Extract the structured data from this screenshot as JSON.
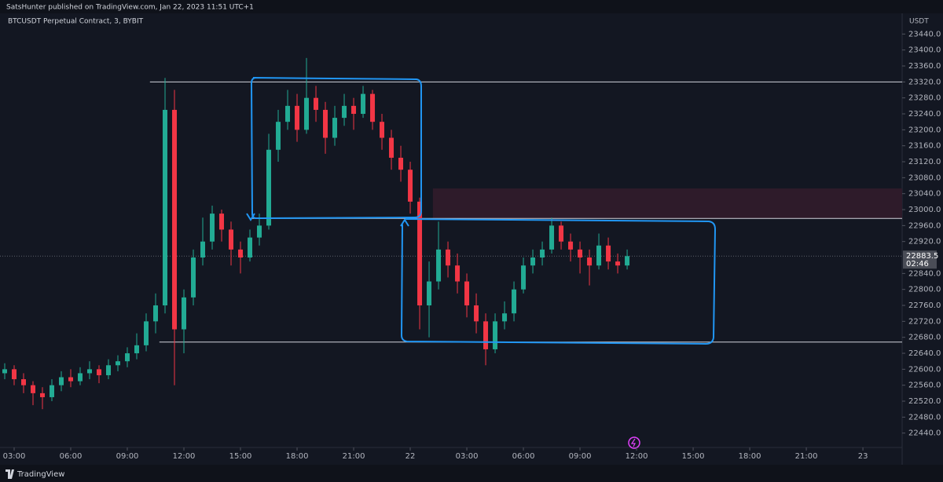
{
  "header": {
    "publisher": "SatsHunter published on TradingView.com, Jan 22, 2023 11:51 UTC+1",
    "brand": "TradingView"
  },
  "chart_data": {
    "type": "candlestick",
    "title": "BTCUSDT Perpetual Contract, 3, BYBIT",
    "y_unit": "USDT",
    "up_color": "#22ab94",
    "down_color": "#f23645",
    "x": [
      2.5,
      3,
      3.5,
      4,
      4.5,
      5,
      5.5,
      6,
      6.5,
      7,
      7.5,
      8,
      8.5,
      9,
      9.5,
      10,
      10.5,
      11,
      11.5,
      12,
      12.5,
      13,
      13.5,
      14,
      14.5,
      15,
      15.5,
      16,
      16.5,
      17,
      17.5,
      18,
      18.5,
      19,
      19.5,
      20,
      20.5,
      21,
      21.5,
      22,
      22.5,
      23,
      23.5,
      24,
      24.5,
      25,
      25.5,
      26,
      26.5,
      27,
      27.5,
      28,
      28.5,
      29,
      29.5,
      30,
      30.5,
      31,
      31.5,
      32,
      32.5,
      33,
      33.5,
      34,
      34.5,
      35,
      35.5
    ],
    "candles": [
      [
        22590,
        22615,
        22575,
        22600
      ],
      [
        22600,
        22610,
        22560,
        22575
      ],
      [
        22575,
        22590,
        22540,
        22560
      ],
      [
        22560,
        22570,
        22510,
        22540
      ],
      [
        22540,
        22555,
        22500,
        22530
      ],
      [
        22530,
        22575,
        22520,
        22560
      ],
      [
        22560,
        22595,
        22545,
        22580
      ],
      [
        22580,
        22600,
        22555,
        22570
      ],
      [
        22570,
        22605,
        22560,
        22590
      ],
      [
        22590,
        22620,
        22575,
        22600
      ],
      [
        22600,
        22610,
        22565,
        22585
      ],
      [
        22585,
        22625,
        22575,
        22610
      ],
      [
        22610,
        22635,
        22595,
        22620
      ],
      [
        22620,
        22655,
        22605,
        22640
      ],
      [
        22640,
        22690,
        22625,
        22660
      ],
      [
        22660,
        22740,
        22645,
        22720
      ],
      [
        22720,
        22790,
        22690,
        22760
      ],
      [
        22760,
        23330,
        22740,
        23250
      ],
      [
        23250,
        23300,
        22560,
        22700
      ],
      [
        22700,
        22800,
        22640,
        22780
      ],
      [
        22780,
        22900,
        22760,
        22880
      ],
      [
        22880,
        22980,
        22860,
        22920
      ],
      [
        22920,
        23010,
        22900,
        22990
      ],
      [
        22990,
        23000,
        22920,
        22950
      ],
      [
        22950,
        22970,
        22860,
        22900
      ],
      [
        22900,
        22920,
        22840,
        22880
      ],
      [
        22880,
        22950,
        22870,
        22930
      ],
      [
        22930,
        22990,
        22910,
        22960
      ],
      [
        22960,
        23190,
        22950,
        23150
      ],
      [
        23150,
        23250,
        23120,
        23220
      ],
      [
        23220,
        23300,
        23200,
        23260
      ],
      [
        23260,
        23290,
        23170,
        23200
      ],
      [
        23200,
        23380,
        23190,
        23280
      ],
      [
        23280,
        23310,
        23220,
        23250
      ],
      [
        23250,
        23270,
        23140,
        23180
      ],
      [
        23180,
        23260,
        23160,
        23230
      ],
      [
        23230,
        23290,
        23210,
        23260
      ],
      [
        23260,
        23280,
        23200,
        23240
      ],
      [
        23240,
        23310,
        23230,
        23290
      ],
      [
        23290,
        23300,
        23200,
        23220
      ],
      [
        23220,
        23240,
        23150,
        23180
      ],
      [
        23180,
        23200,
        23100,
        23130
      ],
      [
        23130,
        23160,
        23070,
        23100
      ],
      [
        23100,
        23120,
        22990,
        23020
      ],
      [
        23020,
        23030,
        22700,
        22760
      ],
      [
        22760,
        22870,
        22680,
        22820
      ],
      [
        22820,
        22970,
        22800,
        22900
      ],
      [
        22900,
        22920,
        22830,
        22860
      ],
      [
        22860,
        22890,
        22790,
        22820
      ],
      [
        22820,
        22840,
        22730,
        22760
      ],
      [
        22760,
        22790,
        22690,
        22720
      ],
      [
        22720,
        22740,
        22610,
        22650
      ],
      [
        22650,
        22740,
        22640,
        22720
      ],
      [
        22720,
        22770,
        22700,
        22740
      ],
      [
        22740,
        22820,
        22720,
        22800
      ],
      [
        22800,
        22880,
        22790,
        22860
      ],
      [
        22860,
        22900,
        22840,
        22880
      ],
      [
        22880,
        22920,
        22860,
        22900
      ],
      [
        22900,
        22980,
        22890,
        22960
      ],
      [
        22960,
        22970,
        22900,
        22920
      ],
      [
        22920,
        22940,
        22870,
        22900
      ],
      [
        22900,
        22920,
        22840,
        22880
      ],
      [
        22880,
        22900,
        22810,
        22860
      ],
      [
        22860,
        22940,
        22850,
        22910
      ],
      [
        22910,
        22930,
        22850,
        22870
      ],
      [
        22870,
        22890,
        22840,
        22860
      ],
      [
        22860,
        22900,
        22850,
        22883.5
      ]
    ],
    "xlim": [
      2.25,
      50.08
    ],
    "xticks": [
      {
        "value": 3,
        "label": "03:00"
      },
      {
        "value": 6,
        "label": "06:00"
      },
      {
        "value": 9,
        "label": "09:00"
      },
      {
        "value": 12,
        "label": "12:00"
      },
      {
        "value": 15,
        "label": "15:00"
      },
      {
        "value": 18,
        "label": "18:00"
      },
      {
        "value": 21,
        "label": "21:00"
      },
      {
        "value": 24,
        "label": "22"
      },
      {
        "value": 27,
        "label": "03:00"
      },
      {
        "value": 30,
        "label": "06:00"
      },
      {
        "value": 33,
        "label": "09:00"
      },
      {
        "value": 36,
        "label": "12:00"
      },
      {
        "value": 39,
        "label": "15:00"
      },
      {
        "value": 42,
        "label": "18:00"
      },
      {
        "value": 45,
        "label": "21:00"
      },
      {
        "value": 48,
        "label": "23"
      }
    ],
    "ylim": [
      22404,
      23482
    ],
    "yticks": [
      {
        "value": 22440,
        "label": "22440.0"
      },
      {
        "value": 22480,
        "label": "22480.0"
      },
      {
        "value": 22520,
        "label": "22520.0"
      },
      {
        "value": 22560,
        "label": "22560.0"
      },
      {
        "value": 22600,
        "label": "22600.0"
      },
      {
        "value": 22640,
        "label": "22640.0"
      },
      {
        "value": 22680,
        "label": "22680.0"
      },
      {
        "value": 22720,
        "label": "22720.0"
      },
      {
        "value": 22760,
        "label": "22760.0"
      },
      {
        "value": 22800,
        "label": "22800.0"
      },
      {
        "value": 22840,
        "label": "22840.0"
      },
      {
        "value": 22920,
        "label": "22920.0"
      },
      {
        "value": 22960,
        "label": "22960.0"
      },
      {
        "value": 23000,
        "label": "23000.0"
      },
      {
        "value": 23040,
        "label": "23040.0"
      },
      {
        "value": 23080,
        "label": "23080.0"
      },
      {
        "value": 23120,
        "label": "23120.0"
      },
      {
        "value": 23160,
        "label": "23160.0"
      },
      {
        "value": 23200,
        "label": "23200.0"
      },
      {
        "value": 23240,
        "label": "23240.0"
      },
      {
        "value": 23280,
        "label": "23280.0"
      },
      {
        "value": 23320,
        "label": "23320.0"
      },
      {
        "value": 23360,
        "label": "23360.0"
      },
      {
        "value": 23400,
        "label": "23400.0"
      },
      {
        "value": 23440,
        "label": "23440.0"
      }
    ],
    "levels": [
      {
        "x": 10.2,
        "y": 23320
      },
      {
        "x": 15.6,
        "y": 22978
      },
      {
        "x": 10.7,
        "y": 22668
      }
    ],
    "zone": {
      "x": 25.2,
      "y": [
        22978,
        23053
      ]
    },
    "last_price": 22883.5,
    "countdown": "02:46"
  }
}
